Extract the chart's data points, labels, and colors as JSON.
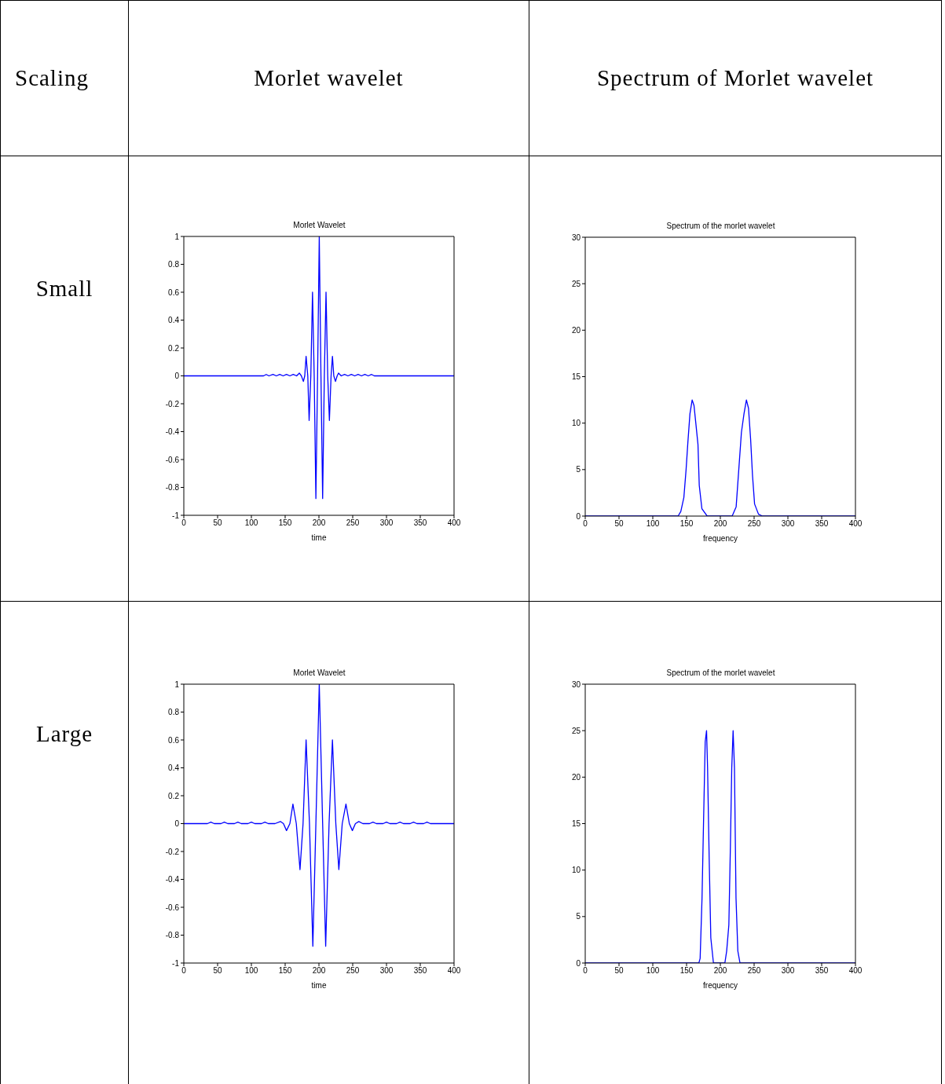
{
  "chart_data": [
    {
      "type": "other",
      "title": "Scaling"
    },
    {
      "type": "other",
      "title": "Morlet wavelet"
    },
    {
      "type": "other",
      "title": "Spectrum of Morlet wavelet"
    },
    {
      "type": "other",
      "title": "Small"
    },
    {
      "type": "line",
      "title": "Morlet Wavelet",
      "xlabel": "time",
      "color": "#0000ff",
      "xlim": [
        0,
        400
      ],
      "xticks": [
        0,
        50,
        100,
        150,
        200,
        250,
        300,
        350,
        400
      ],
      "ylim": [
        -1,
        1
      ],
      "yticks": [
        -1,
        -0.8,
        -0.6,
        -0.4,
        -0.2,
        0,
        0.2,
        0.4,
        0.6,
        0.8,
        1
      ],
      "x": [
        0,
        118,
        122,
        126,
        132,
        137,
        142,
        147,
        152,
        157,
        162,
        167,
        171,
        174,
        177,
        179,
        181,
        183.5,
        185.5,
        188,
        190.5,
        193,
        195.5,
        198,
        200.5,
        203,
        205.5,
        208,
        210.5,
        213,
        215.5,
        218,
        220,
        222,
        224.5,
        227,
        229,
        233,
        238,
        243,
        248,
        253,
        258,
        263,
        268,
        273,
        278,
        282,
        400
      ],
      "values": [
        0,
        0,
        0.01,
        0,
        0.01,
        0,
        0.01,
        0,
        0.01,
        0,
        0.01,
        0,
        0.02,
        0,
        -0.04,
        0,
        0.14,
        0,
        -0.32,
        0,
        0.6,
        0,
        -0.88,
        0,
        1,
        0,
        -0.88,
        0,
        0.6,
        0,
        -0.32,
        0,
        0.14,
        0,
        -0.04,
        0,
        0.02,
        0,
        0.01,
        0,
        0.01,
        0,
        0.01,
        0,
        0.01,
        0,
        0.01,
        0,
        0
      ]
    },
    {
      "type": "line",
      "title": "Spectrum of the morlet wavelet",
      "xlabel": "frequency",
      "color": "#0000ff",
      "xlim": [
        0,
        400
      ],
      "xticks": [
        0,
        50,
        100,
        150,
        200,
        250,
        300,
        350,
        400
      ],
      "ylim": [
        0,
        30
      ],
      "yticks": [
        0,
        5,
        10,
        15,
        20,
        25,
        30
      ],
      "x": [
        0,
        137.5,
        141.5,
        146,
        149.3,
        152,
        155,
        158.3,
        161,
        163.7,
        166.9,
        168.8,
        172.7,
        180.5,
        217.5,
        223.4,
        227.3,
        231.2,
        235,
        238.6,
        241.7,
        244.8,
        247.6,
        250.7,
        256.5,
        262.4,
        400
      ],
      "values": [
        0,
        0,
        0.5,
        2,
        5,
        8,
        11,
        12.5,
        11.9,
        10,
        7.7,
        3.3,
        0.8,
        0,
        0,
        1,
        5,
        9,
        11,
        12.5,
        11.6,
        8.3,
        4.4,
        1.3,
        0.2,
        0,
        0
      ]
    },
    {
      "type": "other",
      "title": "Large"
    },
    {
      "type": "line",
      "title": "Morlet Wavelet",
      "xlabel": "time",
      "color": "#0000ff",
      "xlim": [
        0,
        400
      ],
      "xticks": [
        0,
        50,
        100,
        150,
        200,
        250,
        300,
        350,
        400
      ],
      "ylim": [
        -1,
        1
      ],
      "yticks": [
        -1,
        -0.8,
        -0.6,
        -0.4,
        -0.2,
        0,
        0.2,
        0.4,
        0.6,
        0.8,
        1
      ],
      "x": [
        0,
        35,
        40,
        45,
        55,
        60,
        65,
        75,
        80,
        85,
        95,
        100,
        105,
        115,
        120,
        125,
        135,
        143,
        147.5,
        152,
        157,
        161.5,
        166.5,
        172,
        176.5,
        181,
        186,
        191,
        195.5,
        200.5,
        205.5,
        210,
        215,
        220,
        225,
        229.5,
        234.5,
        240,
        245,
        249.5,
        254,
        259,
        265,
        275,
        280,
        285,
        295,
        300,
        305,
        315,
        320,
        325,
        335,
        340,
        345,
        355,
        360,
        365,
        400
      ],
      "values": [
        0,
        0,
        0.01,
        0,
        0,
        0.01,
        0,
        0,
        0.01,
        0,
        0,
        0.01,
        0,
        0,
        0.01,
        0,
        0,
        0.015,
        0,
        -0.05,
        0,
        0.14,
        0,
        -0.33,
        0,
        0.6,
        0,
        -0.88,
        0,
        1,
        0,
        -0.88,
        0,
        0.6,
        0,
        -0.33,
        0,
        0.14,
        0,
        -0.05,
        0,
        0.015,
        0,
        0,
        0.01,
        0,
        0,
        0.01,
        0,
        0,
        0.01,
        0,
        0,
        0.01,
        0,
        0,
        0.01,
        0,
        0
      ]
    },
    {
      "type": "line",
      "title": "Spectrum of the morlet wavelet",
      "xlabel": "frequency",
      "color": "#0000ff",
      "xlim": [
        0,
        400
      ],
      "xticks": [
        0,
        50,
        100,
        150,
        200,
        250,
        300,
        350,
        400
      ],
      "ylim": [
        0,
        30
      ],
      "yticks": [
        0,
        5,
        10,
        15,
        20,
        25,
        30
      ],
      "x": [
        0,
        168.2,
        170.1,
        172.9,
        175.2,
        177.6,
        179.6,
        181.1,
        183.5,
        185.9,
        189.8,
        206.7,
        209.4,
        212.6,
        214.9,
        216.9,
        218.9,
        220.9,
        223.2,
        225.9,
        229.1,
        400
      ],
      "values": [
        0,
        0,
        0.5,
        7,
        15.4,
        23.8,
        25,
        21,
        11.2,
        2.7,
        0,
        0,
        1.3,
        4.1,
        12.6,
        21,
        25,
        21,
        7,
        1.3,
        0,
        0
      ]
    }
  ]
}
